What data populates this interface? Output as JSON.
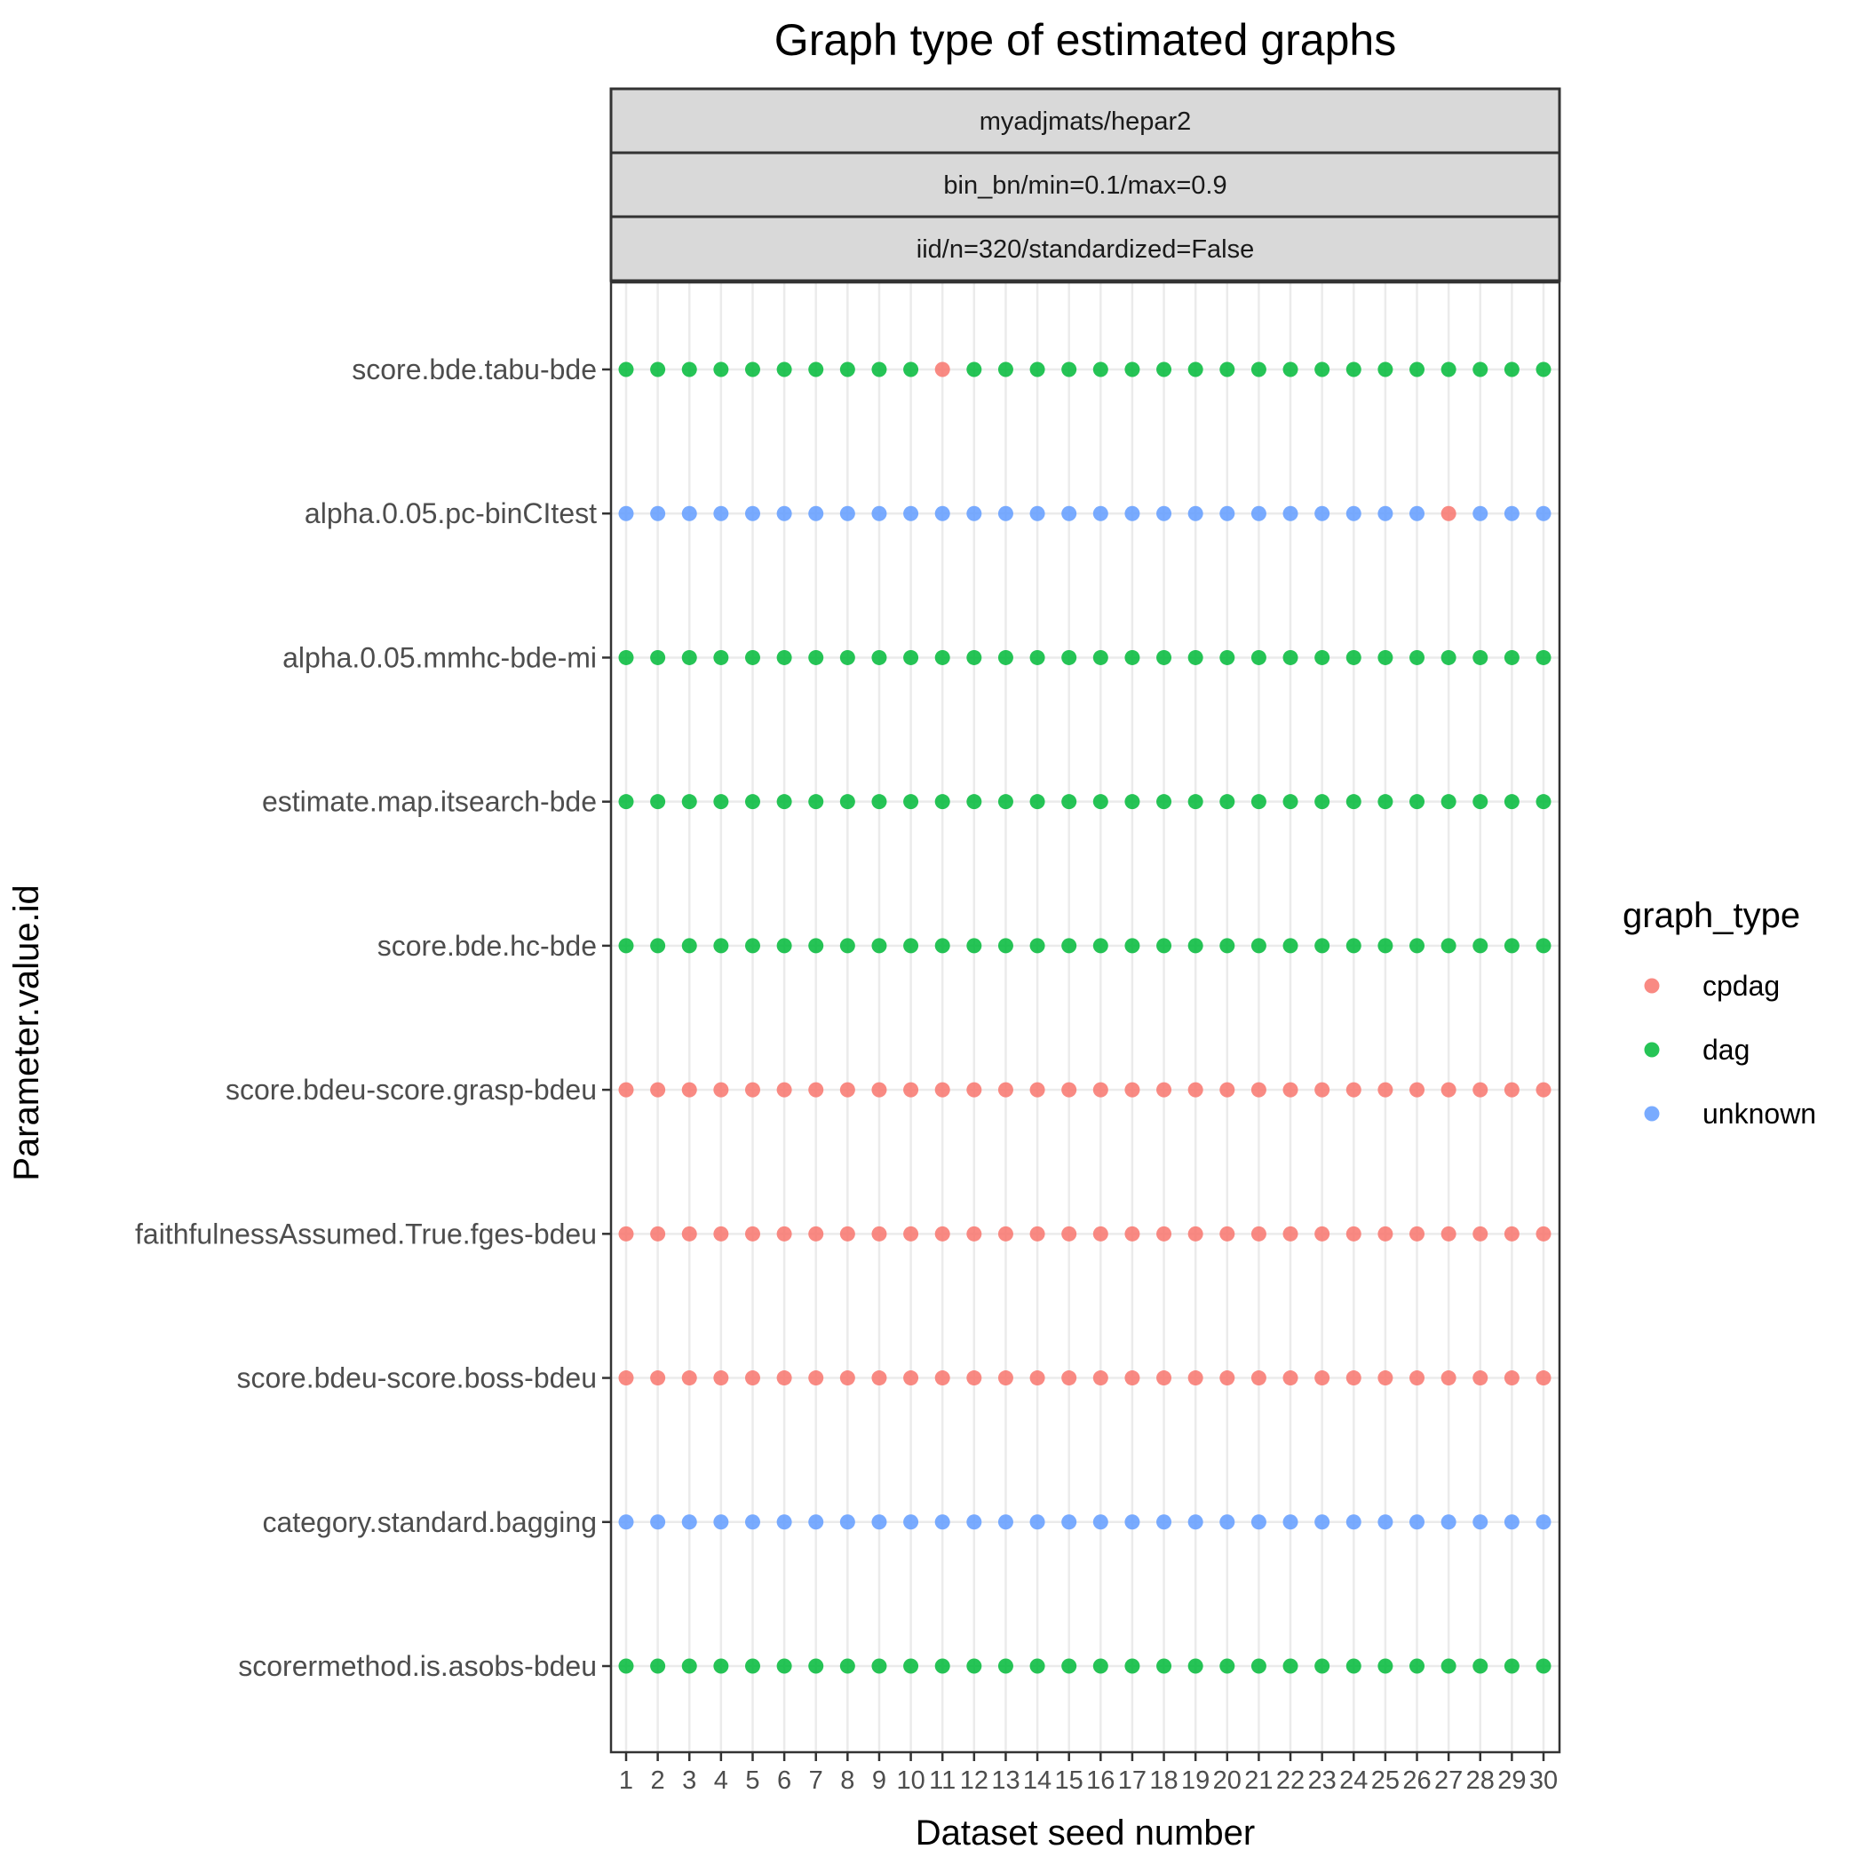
{
  "chart_data": {
    "type": "scatter",
    "title": "Graph type of estimated graphs",
    "xlabel": "Dataset seed number",
    "ylabel": "Parameter.value.id",
    "facet_strips": [
      "myadjmats/hepar2",
      "bin_bn/min=0.1/max=0.9",
      "iid/n=320/standardized=False"
    ],
    "x": [
      1,
      2,
      3,
      4,
      5,
      6,
      7,
      8,
      9,
      10,
      11,
      12,
      13,
      14,
      15,
      16,
      17,
      18,
      19,
      20,
      21,
      22,
      23,
      24,
      25,
      26,
      27,
      28,
      29,
      30
    ],
    "xlim": [
      1,
      30
    ],
    "categories": [
      "score.bde.tabu-bde",
      "alpha.0.05.pc-binCItest",
      "alpha.0.05.mmhc-bde-mi",
      "estimate.map.itsearch-bde",
      "score.bde.hc-bde",
      "score.bdeu-score.grasp-bdeu",
      "faithfulnessAssumed.True.fges-bdeu",
      "score.bdeu-score.boss-bdeu",
      "category.standard.bagging",
      "scorermethod.is.asobs-bdeu"
    ],
    "rows": [
      {
        "default": "dag",
        "overrides": {
          "11": "cpdag"
        }
      },
      {
        "default": "unknown",
        "overrides": {
          "27": "cpdag"
        }
      },
      {
        "default": "dag",
        "overrides": {}
      },
      {
        "default": "dag",
        "overrides": {}
      },
      {
        "default": "dag",
        "overrides": {}
      },
      {
        "default": "cpdag",
        "overrides": {}
      },
      {
        "default": "cpdag",
        "overrides": {}
      },
      {
        "default": "cpdag",
        "overrides": {}
      },
      {
        "default": "unknown",
        "overrides": {}
      },
      {
        "default": "dag",
        "overrides": {}
      }
    ],
    "legend": {
      "title": "graph_type",
      "position": "right",
      "entries": [
        "cpdag",
        "dag",
        "unknown"
      ]
    },
    "colors": {
      "cpdag": "#F8766D",
      "dag": "#00BA38",
      "unknown": "#619CFF"
    },
    "grid": true
  }
}
